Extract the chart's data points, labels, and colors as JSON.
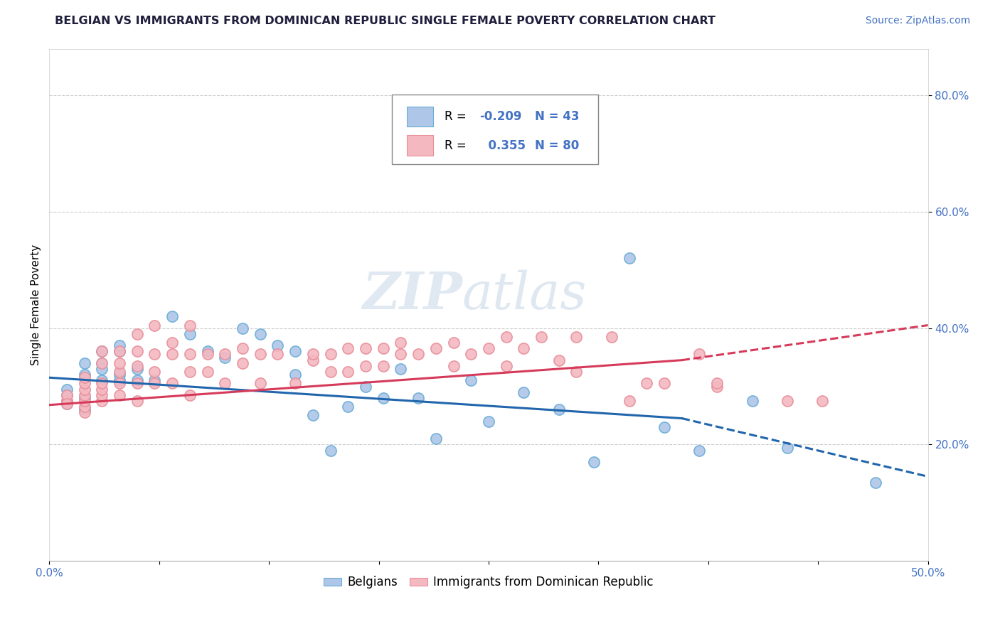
{
  "title": "BELGIAN VS IMMIGRANTS FROM DOMINICAN REPUBLIC SINGLE FEMALE POVERTY CORRELATION CHART",
  "source": "Source: ZipAtlas.com",
  "ylabel": "Single Female Poverty",
  "xlim": [
    0.0,
    0.5
  ],
  "ylim": [
    0.0,
    0.88
  ],
  "yticks": [
    0.2,
    0.4,
    0.6,
    0.8
  ],
  "ytick_labels": [
    "20.0%",
    "40.0%",
    "60.0%",
    "80.0%"
  ],
  "xticks": [
    0.0,
    0.0625,
    0.125,
    0.1875,
    0.25,
    0.3125,
    0.375,
    0.4375,
    0.5
  ],
  "xtick_labels": [
    "0.0%",
    "",
    "",
    "",
    "",
    "",
    "",
    "",
    "50.0%"
  ],
  "watermark_zip": "ZIP",
  "watermark_atlas": "atlas",
  "blue_color": "#aec6e8",
  "pink_color": "#f4b8c1",
  "blue_edge_color": "#6baed6",
  "pink_edge_color": "#e8909a",
  "blue_line_color": "#2166ac",
  "pink_line_color": "#d63a5a",
  "tick_color": "#4472c4",
  "title_color": "#1f1f3d",
  "source_color": "#4472c4",
  "grid_color": "#cccccc",
  "blue_scatter": [
    [
      0.01,
      0.295
    ],
    [
      0.01,
      0.27
    ],
    [
      0.01,
      0.275
    ],
    [
      0.01,
      0.285
    ],
    [
      0.02,
      0.32
    ],
    [
      0.02,
      0.28
    ],
    [
      0.02,
      0.26
    ],
    [
      0.02,
      0.34
    ],
    [
      0.03,
      0.31
    ],
    [
      0.03,
      0.36
    ],
    [
      0.03,
      0.34
    ],
    [
      0.03,
      0.33
    ],
    [
      0.04,
      0.32
    ],
    [
      0.04,
      0.36
    ],
    [
      0.04,
      0.31
    ],
    [
      0.04,
      0.37
    ],
    [
      0.05,
      0.33
    ],
    [
      0.05,
      0.31
    ],
    [
      0.06,
      0.31
    ],
    [
      0.07,
      0.42
    ],
    [
      0.08,
      0.39
    ],
    [
      0.09,
      0.36
    ],
    [
      0.1,
      0.35
    ],
    [
      0.11,
      0.4
    ],
    [
      0.12,
      0.39
    ],
    [
      0.13,
      0.37
    ],
    [
      0.14,
      0.36
    ],
    [
      0.14,
      0.32
    ],
    [
      0.15,
      0.25
    ],
    [
      0.16,
      0.19
    ],
    [
      0.17,
      0.265
    ],
    [
      0.18,
      0.3
    ],
    [
      0.19,
      0.28
    ],
    [
      0.2,
      0.33
    ],
    [
      0.21,
      0.28
    ],
    [
      0.22,
      0.21
    ],
    [
      0.24,
      0.31
    ],
    [
      0.25,
      0.24
    ],
    [
      0.27,
      0.29
    ],
    [
      0.29,
      0.26
    ],
    [
      0.31,
      0.17
    ],
    [
      0.33,
      0.52
    ],
    [
      0.35,
      0.23
    ],
    [
      0.37,
      0.19
    ],
    [
      0.4,
      0.275
    ],
    [
      0.42,
      0.195
    ],
    [
      0.47,
      0.135
    ]
  ],
  "pink_scatter": [
    [
      0.01,
      0.275
    ],
    [
      0.01,
      0.285
    ],
    [
      0.01,
      0.27
    ],
    [
      0.02,
      0.255
    ],
    [
      0.02,
      0.265
    ],
    [
      0.02,
      0.275
    ],
    [
      0.02,
      0.285
    ],
    [
      0.02,
      0.295
    ],
    [
      0.02,
      0.305
    ],
    [
      0.02,
      0.315
    ],
    [
      0.03,
      0.275
    ],
    [
      0.03,
      0.285
    ],
    [
      0.03,
      0.295
    ],
    [
      0.03,
      0.305
    ],
    [
      0.03,
      0.34
    ],
    [
      0.03,
      0.36
    ],
    [
      0.04,
      0.285
    ],
    [
      0.04,
      0.305
    ],
    [
      0.04,
      0.325
    ],
    [
      0.04,
      0.34
    ],
    [
      0.04,
      0.36
    ],
    [
      0.05,
      0.275
    ],
    [
      0.05,
      0.305
    ],
    [
      0.05,
      0.335
    ],
    [
      0.05,
      0.36
    ],
    [
      0.05,
      0.39
    ],
    [
      0.06,
      0.305
    ],
    [
      0.06,
      0.325
    ],
    [
      0.06,
      0.355
    ],
    [
      0.06,
      0.405
    ],
    [
      0.07,
      0.305
    ],
    [
      0.07,
      0.355
    ],
    [
      0.07,
      0.375
    ],
    [
      0.08,
      0.285
    ],
    [
      0.08,
      0.325
    ],
    [
      0.08,
      0.355
    ],
    [
      0.08,
      0.405
    ],
    [
      0.09,
      0.325
    ],
    [
      0.09,
      0.355
    ],
    [
      0.1,
      0.305
    ],
    [
      0.1,
      0.355
    ],
    [
      0.11,
      0.34
    ],
    [
      0.11,
      0.365
    ],
    [
      0.12,
      0.305
    ],
    [
      0.12,
      0.355
    ],
    [
      0.13,
      0.355
    ],
    [
      0.14,
      0.305
    ],
    [
      0.15,
      0.345
    ],
    [
      0.15,
      0.355
    ],
    [
      0.16,
      0.325
    ],
    [
      0.16,
      0.355
    ],
    [
      0.17,
      0.325
    ],
    [
      0.17,
      0.365
    ],
    [
      0.18,
      0.335
    ],
    [
      0.18,
      0.365
    ],
    [
      0.19,
      0.335
    ],
    [
      0.19,
      0.365
    ],
    [
      0.2,
      0.355
    ],
    [
      0.2,
      0.375
    ],
    [
      0.21,
      0.355
    ],
    [
      0.22,
      0.365
    ],
    [
      0.23,
      0.335
    ],
    [
      0.23,
      0.375
    ],
    [
      0.24,
      0.355
    ],
    [
      0.25,
      0.365
    ],
    [
      0.26,
      0.335
    ],
    [
      0.26,
      0.385
    ],
    [
      0.27,
      0.365
    ],
    [
      0.28,
      0.385
    ],
    [
      0.29,
      0.345
    ],
    [
      0.3,
      0.325
    ],
    [
      0.3,
      0.385
    ],
    [
      0.32,
      0.385
    ],
    [
      0.33,
      0.275
    ],
    [
      0.34,
      0.305
    ],
    [
      0.35,
      0.305
    ],
    [
      0.37,
      0.355
    ],
    [
      0.38,
      0.3
    ],
    [
      0.38,
      0.305
    ],
    [
      0.42,
      0.275
    ],
    [
      0.44,
      0.275
    ]
  ],
  "blue_trendline_solid": [
    [
      0.0,
      0.315
    ],
    [
      0.36,
      0.245
    ]
  ],
  "blue_trendline_dashed": [
    [
      0.36,
      0.245
    ],
    [
      0.5,
      0.145
    ]
  ],
  "pink_trendline_solid": [
    [
      0.0,
      0.268
    ],
    [
      0.36,
      0.345
    ]
  ],
  "pink_trendline_dashed": [
    [
      0.36,
      0.345
    ],
    [
      0.5,
      0.405
    ]
  ]
}
